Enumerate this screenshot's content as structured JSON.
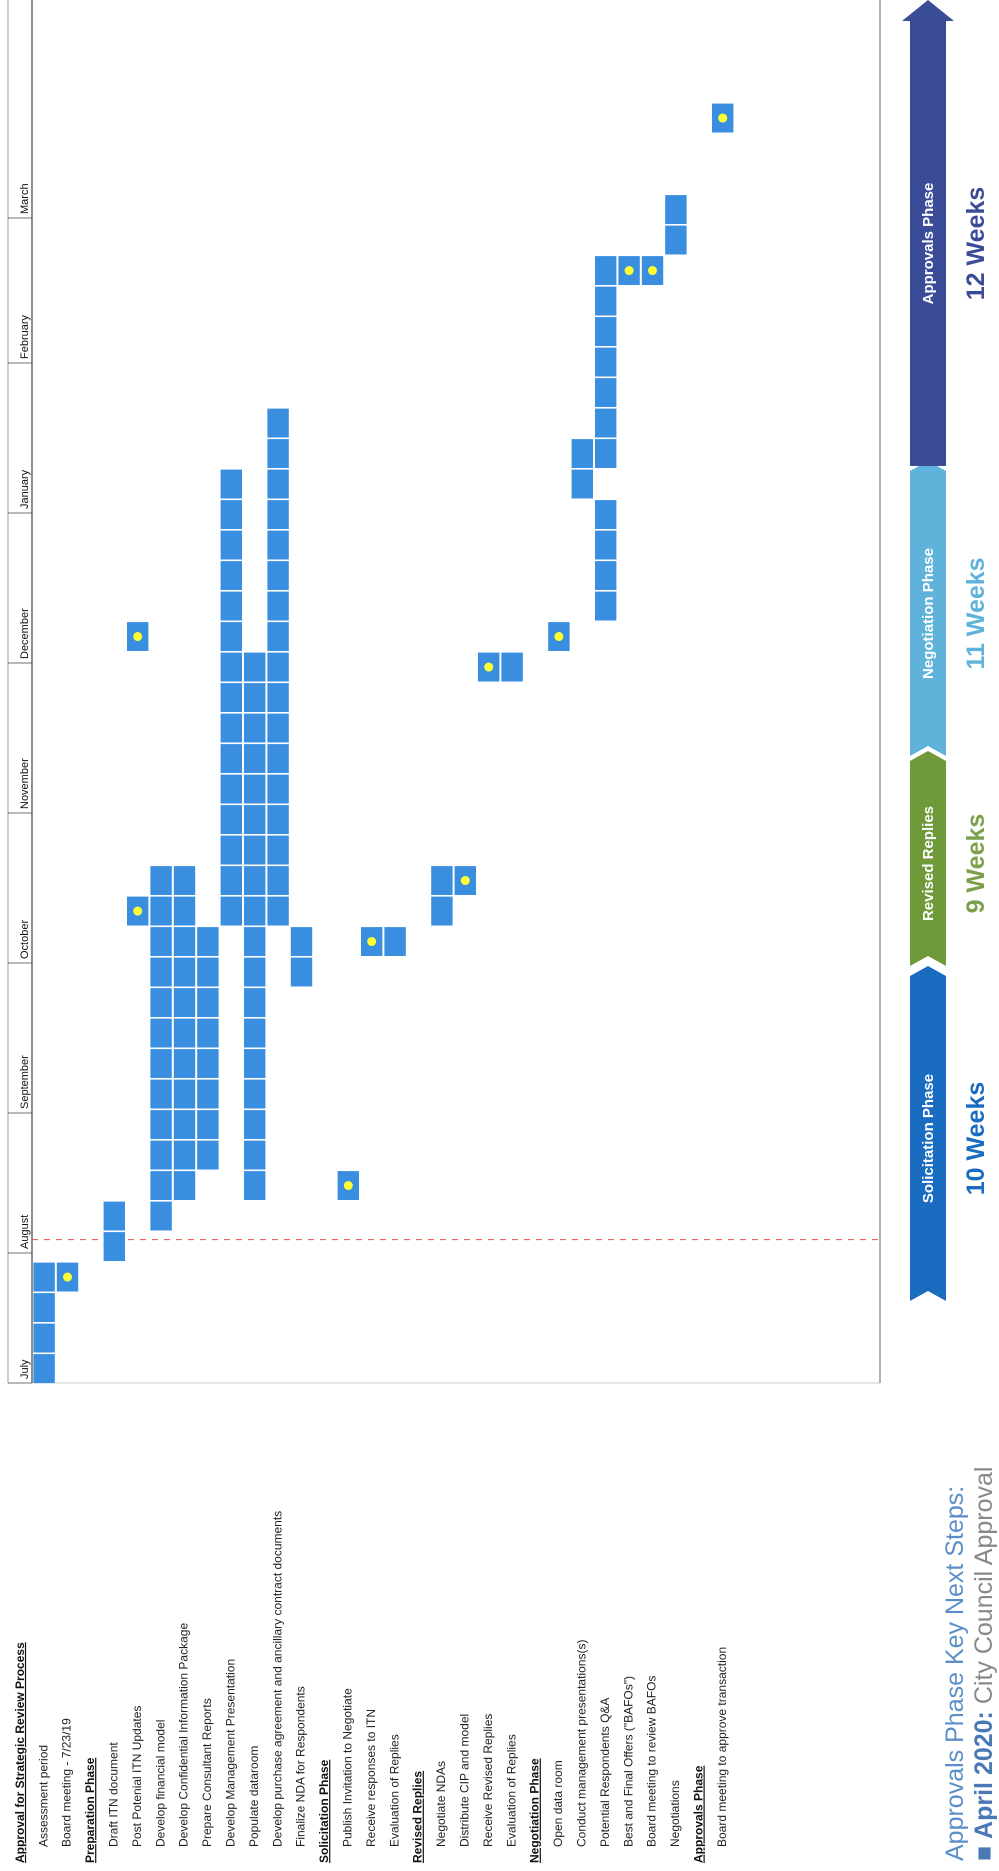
{
  "chart_data": {
    "type": "gantt",
    "months": [
      "July",
      "August",
      "September",
      "October",
      "November",
      "December",
      "January",
      "February",
      "March"
    ],
    "tasks": [
      {
        "label": "Approval for Strategic Review Process",
        "heading": true,
        "blocks": []
      },
      {
        "label": "Assessment period",
        "heading": false,
        "blocks": [
          0,
          1,
          2,
          3
        ]
      },
      {
        "label": "Board meeting - 7/23/19",
        "heading": false,
        "blocks": [
          3
        ],
        "milestones": [
          3
        ]
      },
      {
        "label": "Preparation Phase",
        "heading": true,
        "blocks": []
      },
      {
        "label": "Draft ITN document",
        "heading": false,
        "blocks": [
          4,
          5
        ]
      },
      {
        "label": "Post Potenial ITN Updates",
        "heading": false,
        "blocks": [
          15,
          24
        ],
        "milestones": [
          15,
          24
        ]
      },
      {
        "label": "Develop financial model",
        "heading": false,
        "blocks": [
          5,
          6,
          7,
          8,
          9,
          10,
          11,
          12,
          13,
          14,
          15,
          16
        ]
      },
      {
        "label": "Develop Confidential Information Package",
        "heading": false,
        "blocks": [
          6,
          7,
          8,
          9,
          10,
          11,
          12,
          13,
          14,
          15,
          16
        ]
      },
      {
        "label": "Prepare Consultant Reports",
        "heading": false,
        "blocks": [
          7,
          8,
          9,
          10,
          11,
          12,
          13,
          14
        ]
      },
      {
        "label": "Develop Management Presentation",
        "heading": false,
        "blocks": [
          15,
          16,
          17,
          18,
          19,
          20,
          21,
          22,
          23,
          24,
          25,
          26,
          27,
          28,
          29
        ]
      },
      {
        "label": "Populate dataroom",
        "heading": false,
        "blocks": [
          6,
          7,
          8,
          9,
          10,
          11,
          12,
          13,
          14,
          15,
          16,
          17,
          18,
          19,
          20,
          21,
          22,
          23
        ]
      },
      {
        "label": "Develop purchase agreement and ancillary contract documents",
        "heading": false,
        "blocks": [
          15,
          16,
          17,
          18,
          19,
          20,
          21,
          22,
          23,
          24,
          25,
          26,
          27,
          28,
          29,
          30,
          31
        ]
      },
      {
        "label": "Finalize NDA for Respondents",
        "heading": false,
        "blocks": [
          13,
          14
        ]
      },
      {
        "label": "Solicitation Phase",
        "heading": true,
        "blocks": []
      },
      {
        "label": "Publish Invitation to Negotiate",
        "heading": false,
        "blocks": [
          6
        ],
        "milestones": [
          6
        ]
      },
      {
        "label": "Receive responses to ITN",
        "heading": false,
        "blocks": [
          14
        ],
        "milestones": [
          14
        ]
      },
      {
        "label": "Evaluation of Replies",
        "heading": false,
        "blocks": [
          14
        ]
      },
      {
        "label": "Revised Replies",
        "heading": true,
        "blocks": []
      },
      {
        "label": "Negotiate NDAs",
        "heading": false,
        "blocks": [
          15,
          16
        ]
      },
      {
        "label": "Distribute CIP and model",
        "heading": false,
        "blocks": [
          16
        ],
        "milestones": [
          16
        ]
      },
      {
        "label": "Receive Revised Replies",
        "heading": false,
        "blocks": [
          23
        ],
        "milestones": [
          23
        ]
      },
      {
        "label": "Evaluation of Replies",
        "heading": false,
        "blocks": [
          23
        ]
      },
      {
        "label": "Negotiation Phase",
        "heading": true,
        "blocks": []
      },
      {
        "label": "Open data room",
        "heading": false,
        "blocks": [
          24
        ],
        "milestones": [
          24
        ]
      },
      {
        "label": "Conduct management presentations(s)",
        "heading": false,
        "blocks": [
          29,
          30
        ]
      },
      {
        "label": "Potential Respondents Q&A",
        "heading": false,
        "blocks": [
          25,
          26,
          27,
          28,
          30,
          31,
          32,
          33,
          34,
          35,
          36
        ]
      },
      {
        "label": "Best and Final Offers (\"BAFOs\")",
        "heading": false,
        "blocks": [
          36
        ],
        "milestones": [
          36
        ]
      },
      {
        "label": "Board meeting to review BAFOs",
        "heading": false,
        "blocks": [
          36
        ],
        "milestones": [
          36
        ]
      },
      {
        "label": "Negotiations",
        "heading": false,
        "blocks": [
          37,
          38
        ]
      },
      {
        "label": "Approvals Phase",
        "heading": true,
        "blocks": []
      },
      {
        "label": "Board meeting to approve transaction",
        "heading": false,
        "blocks": [
          41
        ],
        "milestones": [
          41
        ]
      }
    ],
    "phases": [
      {
        "name": "Solicitation Phase",
        "weeks": "10 Weeks",
        "color": "#1a6cc0",
        "text_color": "#1a6cc0"
      },
      {
        "name": "Revised Replies",
        "weeks": "9 Weeks",
        "color": "#6e9a3a",
        "text_color": "#7ca04a"
      },
      {
        "name": "Negotiation Phase",
        "weeks": "11 Weeks",
        "color": "#5fb3da",
        "text_color": "#5fb3da"
      },
      {
        "name": "Approvals Phase",
        "weeks": "12 Weeks",
        "color": "#3a4c98",
        "text_color": "#3a4c98"
      }
    ],
    "bar_color": "#3a8ee0",
    "milestone_color": "#ffff33"
  },
  "next_steps": {
    "title": "Approvals Phase Key Next Steps:",
    "item_lead": "April 2020:",
    "item_rest": " City Council Approval"
  }
}
